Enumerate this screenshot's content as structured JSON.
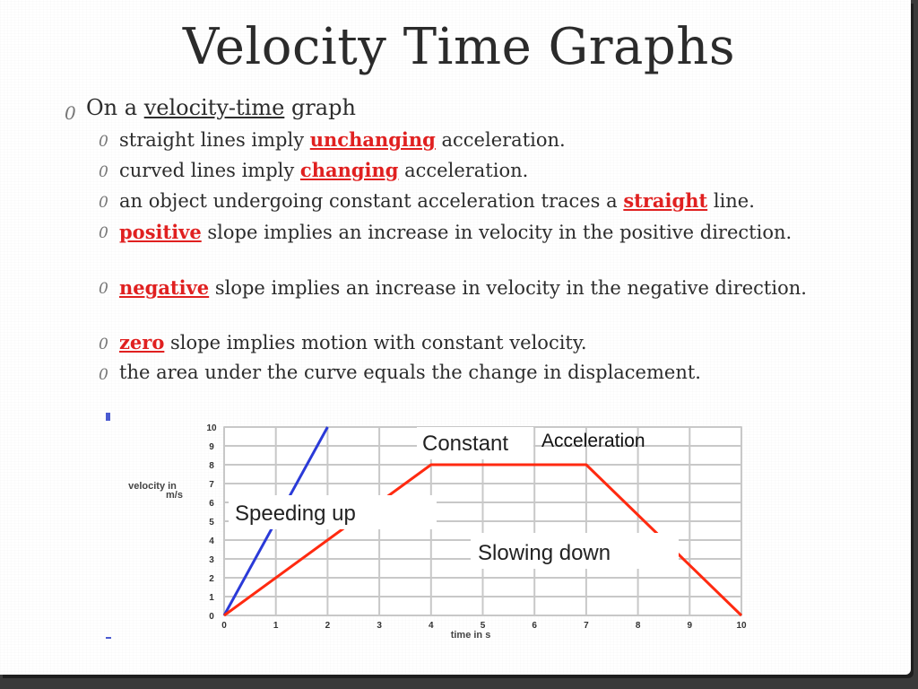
{
  "slide": {
    "title": "Velocity Time Graphs",
    "bullet_marker": "0",
    "main_bullet": {
      "prefix": "On a ",
      "underlined": "velocity-time",
      "suffix": " graph"
    },
    "sub_bullets": [
      {
        "pre": "straight lines imply ",
        "em": "unchanging",
        "post": " acceleration."
      },
      {
        "pre": "curved lines imply ",
        "em": "changing",
        "post": " acceleration."
      },
      {
        "pre": "an object undergoing constant acceleration traces a ",
        "em": "straight",
        "post": " line."
      },
      {
        "pre": "",
        "em": "positive",
        "post": " slope implies an increase in velocity in the positive direction."
      },
      {
        "pre": "",
        "em": "negative",
        "post": " slope implies an increase in velocity in the negative direction."
      },
      {
        "pre": "",
        "em": "zero",
        "post": " slope implies motion with constant velocity."
      },
      {
        "pre": "the area under the curve equals the change in displacement.",
        "em": "",
        "post": ""
      }
    ],
    "colors": {
      "highlight": "#e02020",
      "text": "#2c2c2c",
      "title": "#2b2b2b"
    }
  },
  "chart_data": {
    "type": "line",
    "xlabel": "time in s",
    "ylabel": "velocity in m/s",
    "xlim": [
      0,
      10
    ],
    "ylim": [
      0,
      10
    ],
    "x_ticks": [
      "0",
      "1",
      "2",
      "3",
      "4",
      "5",
      "6",
      "7",
      "8",
      "9",
      "10"
    ],
    "y_ticks": [
      "0",
      "1",
      "2",
      "3",
      "4",
      "5",
      "6",
      "7",
      "8",
      "9",
      "10"
    ],
    "grid": true,
    "series": [
      {
        "color": "#2a3ad8",
        "x": [
          0,
          2
        ],
        "y": [
          0,
          10
        ]
      },
      {
        "color": "#ff2a10",
        "x": [
          0,
          4,
          7,
          10
        ],
        "y": [
          0,
          8,
          8,
          0
        ]
      }
    ],
    "annotations": [
      {
        "text": "Constant",
        "style": "callout"
      },
      {
        "text": "Acceleration",
        "style": "plain"
      },
      {
        "text": "Speeding up",
        "style": "callout"
      },
      {
        "text": "Slowing down",
        "style": "callout"
      }
    ]
  }
}
